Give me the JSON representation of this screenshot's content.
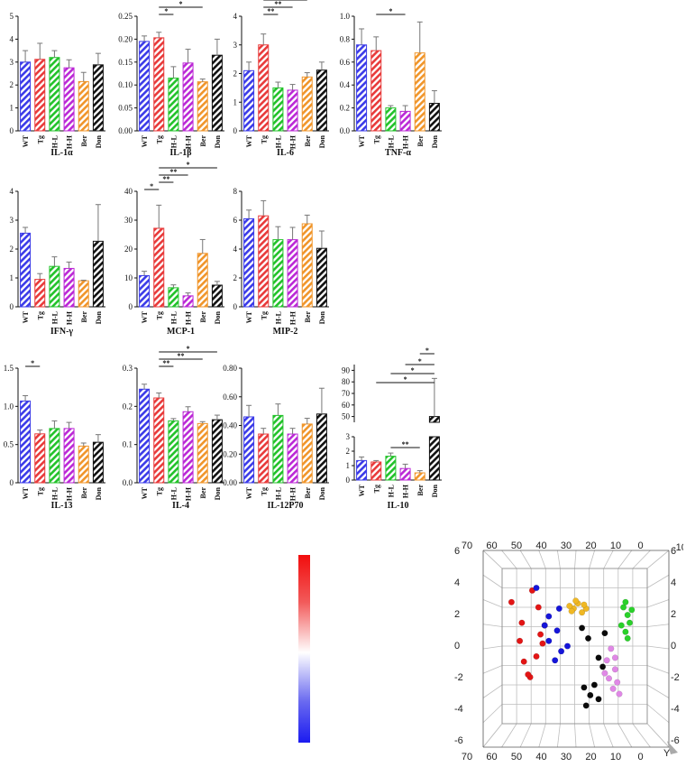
{
  "colors": {
    "WT": "#3b3be8",
    "Tg": "#e83a3a",
    "H-L": "#22c22a",
    "H-H": "#bb28d6",
    "Ber": "#f0952a",
    "Don": "#111111"
  },
  "chart_data": [
    {
      "type": "bar",
      "title": "IL-1α",
      "categories": [
        "WT",
        "Tg",
        "H-L",
        "H-H",
        "Ber",
        "Don"
      ],
      "values": [
        3.0,
        3.12,
        3.2,
        2.75,
        2.15,
        2.88
      ],
      "errors": [
        0.5,
        0.7,
        0.3,
        0.35,
        0.4,
        0.5
      ],
      "ylim": [
        0,
        5
      ],
      "yticks": [
        "0",
        "1",
        "2",
        "3",
        "4",
        "5"
      ],
      "significance": []
    },
    {
      "type": "bar",
      "title": "IL-1β",
      "categories": [
        "WT",
        "Tg",
        "H-L",
        "H-H",
        "Ber",
        "Don"
      ],
      "values": [
        0.195,
        0.203,
        0.115,
        0.148,
        0.107,
        0.165
      ],
      "errors": [
        0.012,
        0.012,
        0.025,
        0.03,
        0.006,
        0.035
      ],
      "ylim": [
        0,
        0.25
      ],
      "yticks": [
        "0.00",
        "0.05",
        "0.10",
        "0.15",
        "0.20",
        "0.25"
      ],
      "significance": [
        {
          "from": "Tg",
          "to": "H-L",
          "label": "*"
        },
        {
          "from": "Tg",
          "to": "Ber",
          "label": "*"
        }
      ]
    },
    {
      "type": "bar",
      "title": "IL-6",
      "categories": [
        "WT",
        "Tg",
        "H-L",
        "H-H",
        "Ber",
        "Don"
      ],
      "values": [
        2.1,
        3.0,
        1.5,
        1.42,
        1.88,
        2.12
      ],
      "errors": [
        0.3,
        0.38,
        0.2,
        0.2,
        0.15,
        0.28
      ],
      "ylim": [
        0,
        4
      ],
      "yticks": [
        "0",
        "1",
        "2",
        "3",
        "4"
      ],
      "significance": [
        {
          "from": "Tg",
          "to": "H-L",
          "label": "**"
        },
        {
          "from": "Tg",
          "to": "H-H",
          "label": "**"
        },
        {
          "from": "Tg",
          "to": "Ber",
          "label": "*"
        }
      ]
    },
    {
      "type": "bar",
      "title": "TNF-α",
      "categories": [
        "WT",
        "Tg",
        "H-L",
        "H-H",
        "Ber",
        "Don"
      ],
      "values": [
        0.75,
        0.7,
        0.2,
        0.17,
        0.68,
        0.24
      ],
      "errors": [
        0.14,
        0.12,
        0.02,
        0.05,
        0.27,
        0.11
      ],
      "ylim": [
        0,
        1.0
      ],
      "yticks": [
        "0.0",
        "0.2",
        "0.4",
        "0.6",
        "0.8",
        "1.0"
      ],
      "significance": [
        {
          "from": "Tg",
          "to": "H-H",
          "label": "*"
        }
      ]
    },
    {
      "type": "bar",
      "title": "IFN-γ",
      "categories": [
        "WT",
        "Tg",
        "H-L",
        "H-H",
        "Ber",
        "Don"
      ],
      "values": [
        2.55,
        0.95,
        1.4,
        1.33,
        0.9,
        2.27
      ],
      "errors": [
        0.2,
        0.2,
        0.33,
        0.22,
        0.02,
        1.27
      ],
      "ylim": [
        0,
        4
      ],
      "yticks": [
        "0",
        "1",
        "2",
        "3",
        "4"
      ],
      "significance": []
    },
    {
      "type": "bar",
      "title": "MCP-1",
      "categories": [
        "WT",
        "Tg",
        "H-L",
        "H-H",
        "Ber",
        "Don"
      ],
      "values": [
        10.8,
        27.2,
        6.6,
        3.8,
        18.5,
        7.5
      ],
      "errors": [
        1.5,
        8,
        1,
        1,
        4.8,
        1.3
      ],
      "ylim": [
        0,
        40
      ],
      "yticks": [
        "0",
        "10",
        "20",
        "30",
        "40"
      ],
      "significance": [
        {
          "from": "WT",
          "to": "Tg",
          "label": "*"
        },
        {
          "from": "Tg",
          "to": "H-L",
          "label": "**"
        },
        {
          "from": "Tg",
          "to": "H-H",
          "label": "**"
        },
        {
          "from": "Tg",
          "to": "Don",
          "label": "*"
        }
      ]
    },
    {
      "type": "bar",
      "title": "MIP-2",
      "categories": [
        "WT",
        "Tg",
        "H-L",
        "H-H",
        "Ber",
        "Don"
      ],
      "values": [
        6.1,
        6.3,
        4.65,
        4.65,
        5.75,
        4.05
      ],
      "errors": [
        0.6,
        1.05,
        0.9,
        0.85,
        0.6,
        1.2
      ],
      "ylim": [
        0,
        8
      ],
      "yticks": [
        "0",
        "2",
        "4",
        "6",
        "8"
      ],
      "significance": []
    },
    {
      "type": "bar",
      "title": "IL-13",
      "categories": [
        "WT",
        "Tg",
        "H-L",
        "H-H",
        "Ber",
        "Don"
      ],
      "values": [
        1.07,
        0.64,
        0.71,
        0.71,
        0.48,
        0.53
      ],
      "errors": [
        0.07,
        0.05,
        0.1,
        0.08,
        0.04,
        0.1
      ],
      "ylim": [
        0,
        1.5
      ],
      "yticks": [
        "0",
        "0.5",
        "1.0",
        "1.5"
      ],
      "significance": [
        {
          "from": "WT",
          "to": "Tg",
          "label": "*"
        }
      ]
    },
    {
      "type": "bar",
      "title": "IL-4",
      "categories": [
        "WT",
        "Tg",
        "H-L",
        "H-H",
        "Ber",
        "Don"
      ],
      "values": [
        0.245,
        0.222,
        0.162,
        0.186,
        0.155,
        0.165
      ],
      "errors": [
        0.013,
        0.013,
        0.006,
        0.013,
        0.005,
        0.012
      ],
      "ylim": [
        0,
        0.3
      ],
      "yticks": [
        "0.0",
        "0.1",
        "0.2",
        "0.3"
      ],
      "significance": [
        {
          "from": "Tg",
          "to": "H-L",
          "label": "**"
        },
        {
          "from": "Tg",
          "to": "Ber",
          "label": "**"
        },
        {
          "from": "Tg",
          "to": "Don",
          "label": "*"
        }
      ]
    },
    {
      "type": "bar",
      "title": "IL-12P70",
      "categories": [
        "WT",
        "Tg",
        "H-L",
        "H-H",
        "Ber",
        "Don"
      ],
      "values": [
        0.46,
        0.34,
        0.47,
        0.34,
        0.41,
        0.48
      ],
      "errors": [
        0.08,
        0.04,
        0.08,
        0.04,
        0.04,
        0.18
      ],
      "ylim": [
        0,
        0.8
      ],
      "yticks": [
        "0.00",
        "0.20",
        "0.40",
        "0.60",
        "0.80"
      ],
      "significance": []
    },
    {
      "type": "bar",
      "title": "IL-10",
      "categories": [
        "WT",
        "Tg",
        "H-L",
        "H-H",
        "Ber",
        "Don"
      ],
      "values": [
        1.35,
        1.25,
        1.65,
        0.8,
        0.5,
        50
      ],
      "errors": [
        0.25,
        0.1,
        0.22,
        0.3,
        0.15,
        33
      ],
      "axis_break": {
        "lower": [
          0,
          3
        ],
        "upper": [
          45,
          95
        ]
      },
      "yticks_lower": [
        "0",
        "1",
        "2",
        "3"
      ],
      "yticks_upper": [
        "50",
        "60",
        "70",
        "80",
        "90"
      ],
      "significance": [
        {
          "from": "H-L",
          "to": "Ber",
          "label": "**"
        },
        {
          "from": "Ber",
          "to": "Don",
          "label": "*"
        },
        {
          "from": "H-H",
          "to": "Don",
          "label": "*"
        },
        {
          "from": "H-L",
          "to": "Don",
          "label": "*"
        },
        {
          "from": "Tg",
          "to": "Don",
          "label": "*"
        }
      ]
    },
    {
      "type": "heatmap",
      "title": "",
      "colorbar": {
        "top_color": "#f20d0d",
        "mid_color": "#ffffff",
        "bottom_color": "#1b1bf0"
      }
    },
    {
      "type": "scatter",
      "title": "",
      "xlabel": "",
      "ylabel": "Y",
      "zlabel": "",
      "x_ticks": [
        "70",
        "60",
        "50",
        "40",
        "30",
        "20",
        "10",
        "0"
      ],
      "y_ticks": [
        "6",
        "4",
        "2",
        "0",
        "-2",
        "-4",
        "-6"
      ],
      "groups": [
        {
          "color": "#e31515",
          "points": [
            [
              62,
              3.4
            ],
            [
              57,
              1.8
            ],
            [
              58,
              0.4
            ],
            [
              56,
              -1.2
            ],
            [
              53,
              -2.4
            ],
            [
              50,
              -0.8
            ],
            [
              48,
              0.9
            ],
            [
              46,
              1.6
            ],
            [
              49,
              3.0
            ],
            [
              52,
              4.3
            ],
            [
              54,
              -2.2
            ],
            [
              47,
              0.2
            ]
          ]
        },
        {
          "color": "#1515d9",
          "points": [
            [
              50,
              4.5
            ],
            [
              44,
              2.3
            ],
            [
              39,
              2.9
            ],
            [
              40,
              1.2
            ],
            [
              41,
              -1.1
            ],
            [
              38,
              -0.4
            ],
            [
              44,
              0.4
            ],
            [
              46,
              1.6
            ],
            [
              35,
              0.0
            ]
          ]
        },
        {
          "color": "#f0b824",
          "points": [
            [
              32,
              2.9
            ],
            [
              34,
              3.1
            ],
            [
              30,
              3.3
            ],
            [
              28,
              2.6
            ],
            [
              26,
              2.9
            ],
            [
              31,
              3.5
            ],
            [
              27,
              3.2
            ],
            [
              33,
              2.7
            ]
          ]
        },
        {
          "color": "#0a0a0a",
          "points": [
            [
              28,
              1.4
            ],
            [
              25,
              0.6
            ],
            [
              20,
              -0.9
            ],
            [
              18,
              -1.6
            ],
            [
              22,
              -3.0
            ],
            [
              24,
              -3.8
            ],
            [
              26,
              -4.6
            ],
            [
              20,
              -4.1
            ],
            [
              27,
              -3.2
            ],
            [
              17,
              1.0
            ]
          ]
        },
        {
          "color": "#e088e6",
          "points": [
            [
              14,
              -0.2
            ],
            [
              16,
              -1.1
            ],
            [
              12,
              -1.8
            ],
            [
              15,
              -2.5
            ],
            [
              13,
              -3.3
            ],
            [
              10,
              -3.7
            ],
            [
              11,
              -2.8
            ],
            [
              17,
              -2.1
            ],
            [
              12,
              -0.9
            ]
          ]
        },
        {
          "color": "#2ad12a",
          "points": [
            [
              8,
              3.0
            ],
            [
              6,
              2.4
            ],
            [
              9,
              1.6
            ],
            [
              7,
              1.1
            ],
            [
              5,
              1.8
            ],
            [
              4,
              2.8
            ],
            [
              7,
              3.4
            ],
            [
              6,
              0.6
            ]
          ]
        }
      ]
    }
  ]
}
